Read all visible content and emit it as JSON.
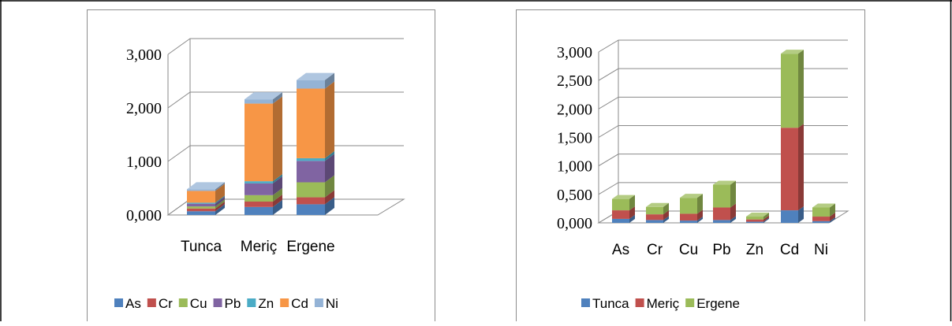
{
  "chart_data": [
    {
      "type": "bar",
      "stacked": true,
      "three_d": true,
      "categories": [
        "Tunca",
        "Meriç",
        "Ergene"
      ],
      "series": [
        {
          "name": "As",
          "color": "#4f81bd",
          "values": [
            0.07,
            0.15,
            0.2
          ]
        },
        {
          "name": "Cr",
          "color": "#c0504d",
          "values": [
            0.05,
            0.1,
            0.13
          ]
        },
        {
          "name": "Cu",
          "color": "#9bbb59",
          "values": [
            0.04,
            0.12,
            0.28
          ]
        },
        {
          "name": "Pb",
          "color": "#8064a2",
          "values": [
            0.05,
            0.22,
            0.4
          ]
        },
        {
          "name": "Zn",
          "color": "#4bacc6",
          "values": [
            0.02,
            0.04,
            0.05
          ]
        },
        {
          "name": "Cd",
          "color": "#f79646",
          "values": [
            0.22,
            1.45,
            1.3
          ]
        },
        {
          "name": "Ni",
          "color": "#94b3d6",
          "values": [
            0.03,
            0.08,
            0.16
          ]
        }
      ],
      "yticks": [
        "0,000",
        "1,000",
        "2,000",
        "3,000"
      ],
      "ylim": [
        0,
        3
      ],
      "grid": true,
      "legend": "bottom"
    },
    {
      "type": "bar",
      "stacked": true,
      "three_d": true,
      "categories": [
        "As",
        "Cr",
        "Cu",
        "Pb",
        "Zn",
        "Cd",
        "Ni"
      ],
      "series": [
        {
          "name": "Tunca",
          "color": "#4f81bd",
          "values": [
            0.07,
            0.05,
            0.04,
            0.05,
            0.02,
            0.22,
            0.03
          ]
        },
        {
          "name": "Meriç",
          "color": "#c0504d",
          "values": [
            0.15,
            0.1,
            0.12,
            0.22,
            0.04,
            1.45,
            0.08
          ]
        },
        {
          "name": "Ergene",
          "color": "#9bbb59",
          "values": [
            0.2,
            0.13,
            0.28,
            0.4,
            0.05,
            1.3,
            0.16
          ]
        }
      ],
      "yticks": [
        "0,000",
        "0,500",
        "1,000",
        "1,500",
        "2,000",
        "2,500",
        "3,000"
      ],
      "ylim": [
        0,
        3
      ],
      "grid": true,
      "legend": "bottom"
    }
  ]
}
